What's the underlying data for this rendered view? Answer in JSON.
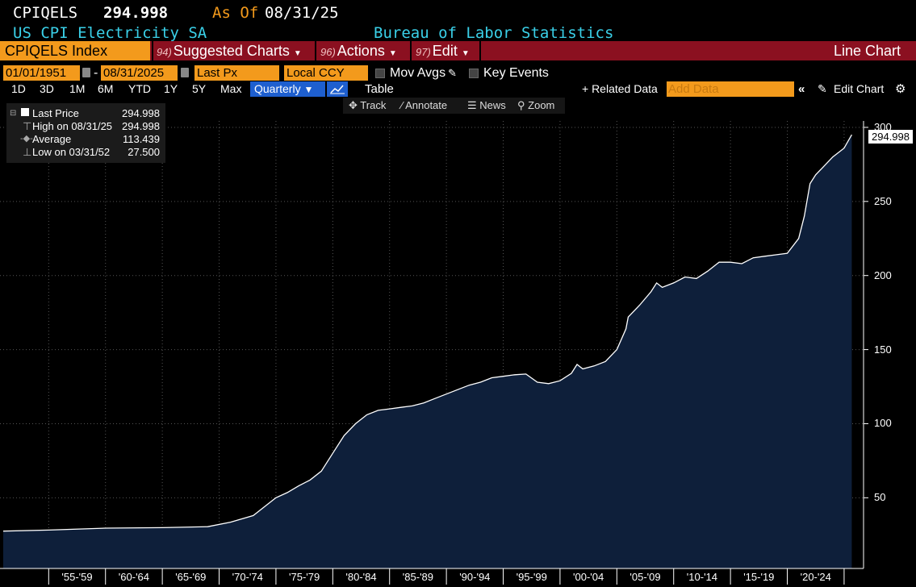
{
  "header": {
    "ticker": "CPIQELS",
    "price": "294.998",
    "as_of_label": "As Of",
    "as_of_date": "08/31/25",
    "description": "US CPI Electricity SA",
    "source": "Bureau of Labor Statistics"
  },
  "menu": {
    "security": "CPIQELS Index",
    "suggested_num": "94)",
    "suggested": "Suggested Charts",
    "actions_num": "96)",
    "actions": "Actions",
    "edit_num": "97)",
    "edit": "Edit",
    "chart_type": "Line Chart"
  },
  "controls": {
    "start_date": "01/01/1951",
    "dash": "-",
    "end_date": "08/31/2025",
    "field": "Last Px",
    "currency": "Local CCY",
    "mov_avgs": "Mov Avgs",
    "key_events": "Key Events",
    "ranges": [
      "1D",
      "3D",
      "1M",
      "6M",
      "YTD",
      "1Y",
      "5Y",
      "Max"
    ],
    "period": "Quarterly",
    "table": "Table",
    "related": "+ Related Data",
    "add_data_placeholder": "Add Data",
    "edit_chart": "Edit Chart",
    "tools": [
      "Track",
      "Annotate",
      "News",
      "Zoom"
    ]
  },
  "legend": {
    "last_label": "Last Price",
    "last_value": "294.998",
    "high_label": "High on 08/31/25",
    "high_value": "294.998",
    "avg_label": "Average",
    "avg_value": "113.439",
    "low_label": "Low on 03/31/52",
    "low_value": "27.500"
  },
  "colors": {
    "red_bar": "#8b1020",
    "orange": "#f39a1c",
    "area_fill": "#0e1f3a",
    "line": "#ffffff",
    "header_cyan": "#3ad0e8",
    "as_of_orange": "#f39a1c"
  },
  "chart_data": {
    "type": "area",
    "title": "",
    "xlabel": "",
    "ylabel": "",
    "ylim": [
      0,
      300
    ],
    "yticks": [
      50,
      100,
      150,
      200,
      250,
      300
    ],
    "y_tick_labels": [
      "50",
      "100",
      "150",
      "200",
      "250",
      "300"
    ],
    "x_tick_labels": [
      "'55-'59",
      "'60-'64",
      "'65-'69",
      "'70-'74",
      "'75-'79",
      "'80-'84",
      "'85-'89",
      "'90-'94",
      "'95-'99",
      "'00-'04",
      "'05-'09",
      "'10-'14",
      "'15-'19",
      "'20-'24"
    ],
    "last_value_label": "294.998",
    "grid": true,
    "series": [
      {
        "x": [
          1951.0,
          1955.0,
          1960.0,
          1965.0,
          1969.0,
          1971.0,
          1973.0,
          1974.0,
          1975.0,
          1976.0,
          1977.0,
          1978.0,
          1979.0,
          1980.0,
          1981.0,
          1982.0,
          1983.0,
          1984.0,
          1985.0,
          1986.0,
          1987.0,
          1988.0,
          1989.0,
          1990.0,
          1991.0,
          1992.0,
          1993.0,
          1994.0,
          1995.0,
          1996.0,
          1997.0,
          1998.0,
          1999.0,
          2000.0,
          2001.0,
          2001.5,
          2002.0,
          2003.0,
          2004.0,
          2005.0,
          2005.8,
          2006.0,
          2007.0,
          2008.0,
          2008.5,
          2009.0,
          2010.0,
          2011.0,
          2012.0,
          2013.0,
          2014.0,
          2015.0,
          2016.0,
          2017.0,
          2018.0,
          2019.0,
          2020.0,
          2021.0,
          2021.5,
          2022.0,
          2022.5,
          2023.0,
          2024.0,
          2025.0,
          2025.67
        ],
        "y": [
          27.5,
          28.2,
          29.5,
          29.8,
          30.5,
          33.5,
          38.0,
          44.0,
          50.0,
          53.5,
          58.0,
          62.0,
          68.0,
          80.0,
          92.0,
          100.0,
          106.0,
          109.0,
          110.0,
          111.0,
          112.0,
          114.0,
          117.0,
          120.0,
          123.0,
          126.0,
          128.0,
          131.0,
          132.0,
          133.0,
          133.5,
          128.0,
          127.0,
          129.0,
          134.0,
          140.0,
          137.0,
          139.0,
          142.0,
          150.0,
          164.0,
          172.0,
          180.0,
          189.0,
          195.0,
          192.0,
          195.0,
          199.0,
          198.0,
          203.0,
          209.0,
          209.0,
          208.0,
          212.0,
          213.0,
          214.0,
          215.0,
          225.0,
          240.0,
          262.0,
          268.0,
          272.0,
          280.0,
          286.0,
          294.998
        ]
      }
    ]
  }
}
